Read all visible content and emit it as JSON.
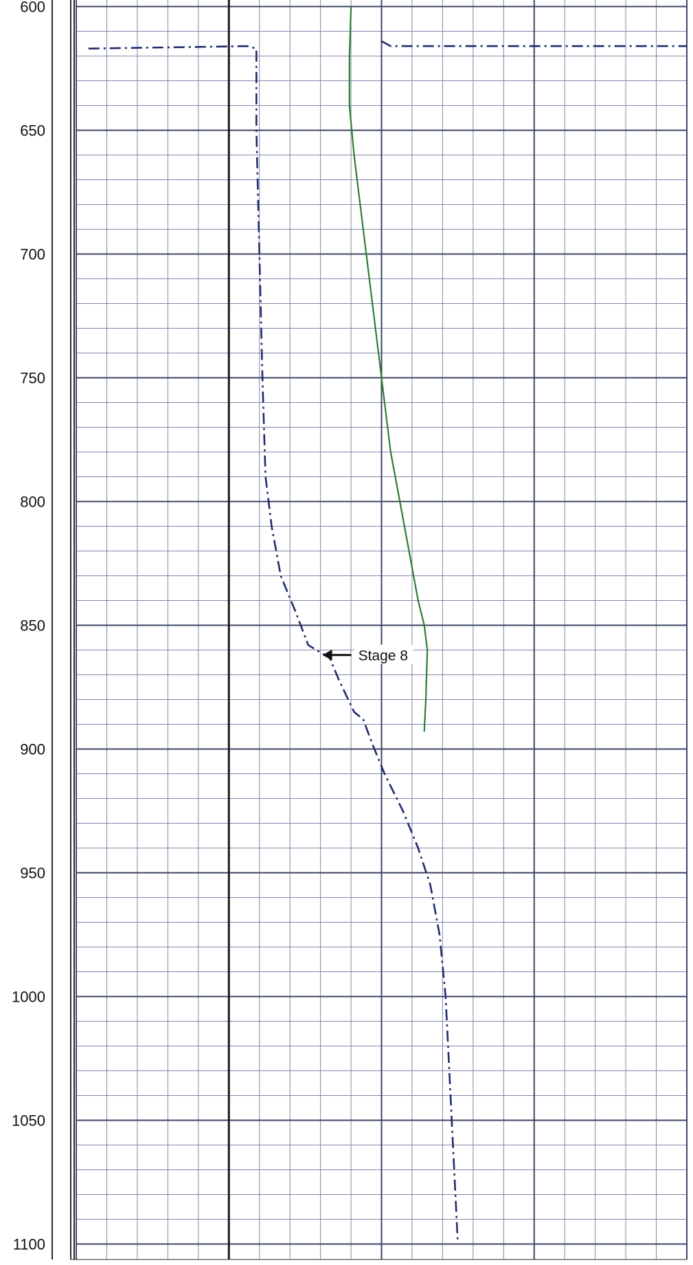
{
  "chart_data": {
    "type": "line",
    "title": "",
    "xlabel": "",
    "ylabel": "",
    "y_axis": {
      "direction": "down",
      "range": [
        600,
        1100
      ],
      "major_ticks": [
        600,
        650,
        700,
        750,
        800,
        850,
        900,
        950,
        1000,
        1050,
        1100
      ],
      "tick_labels": [
        "600",
        "650",
        "700",
        "750",
        "800",
        "850",
        "900",
        "950",
        "1000",
        "1050",
        "1100"
      ],
      "minor_step": 10
    },
    "x_axis": {
      "range": [
        0,
        20
      ],
      "tick_labels": [],
      "major_step": 5
    },
    "grid": true,
    "series": [
      {
        "style": "solid",
        "color": "#2e7d32",
        "points": [
          [
            9.0,
            600
          ],
          [
            8.95,
            620
          ],
          [
            8.95,
            640
          ],
          [
            9.1,
            660
          ],
          [
            9.3,
            680
          ],
          [
            9.5,
            700
          ],
          [
            9.7,
            720
          ],
          [
            9.9,
            740
          ],
          [
            10.1,
            760
          ],
          [
            10.3,
            780
          ],
          [
            10.6,
            800
          ],
          [
            10.9,
            820
          ],
          [
            11.2,
            840
          ],
          [
            11.4,
            850
          ],
          [
            11.5,
            860
          ],
          [
            11.45,
            880
          ],
          [
            11.4,
            893
          ]
        ]
      },
      {
        "style": "dashdot",
        "color": "#1f2a6b",
        "points": [
          [
            0.4,
            617
          ],
          [
            5.6,
            616
          ],
          [
            5.9,
            617
          ],
          [
            5.9,
            650
          ],
          [
            6.0,
            700
          ],
          [
            6.1,
            750
          ],
          [
            6.2,
            790
          ],
          [
            6.4,
            810
          ],
          [
            6.7,
            830
          ],
          [
            7.2,
            845
          ],
          [
            7.6,
            858
          ],
          [
            8.0,
            861
          ],
          [
            8.3,
            863
          ],
          [
            8.6,
            872
          ],
          [
            9.1,
            885
          ],
          [
            9.4,
            888
          ],
          [
            9.7,
            898
          ],
          [
            10.1,
            910
          ],
          [
            10.7,
            925
          ],
          [
            11.2,
            940
          ],
          [
            11.6,
            955
          ],
          [
            11.9,
            975
          ],
          [
            12.1,
            1000
          ],
          [
            12.2,
            1025
          ],
          [
            12.3,
            1050
          ],
          [
            12.4,
            1075
          ],
          [
            12.5,
            1100
          ]
        ]
      },
      {
        "style": "dashdot",
        "color": "#1f2a6b",
        "points": [
          [
            10.0,
            614
          ],
          [
            10.3,
            616
          ],
          [
            14.0,
            616
          ],
          [
            20.0,
            616
          ]
        ]
      }
    ],
    "annotations": [
      {
        "text": "Stage 8",
        "arrow_to": [
          8.0,
          862
        ],
        "text_at": [
          8.4,
          862
        ]
      }
    ]
  }
}
